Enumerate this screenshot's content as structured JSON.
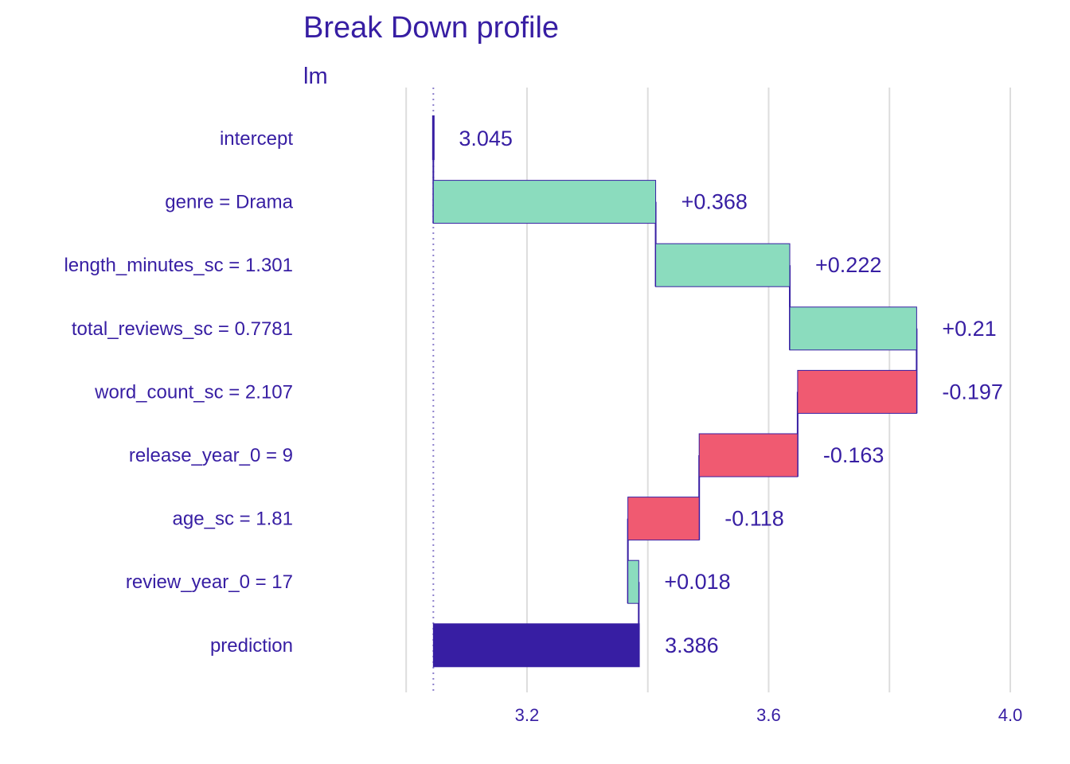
{
  "chart_data": {
    "type": "bar",
    "title": "Break Down profile",
    "subtitle": "lm",
    "categories": [
      "intercept",
      "genre = Drama",
      "length_minutes_sc = 1.301",
      "total_reviews_sc = 0.7781",
      "word_count_sc = 2.107",
      "release_year_0 = 9",
      "age_sc = 1.81",
      "review_year_0 = 17",
      "prediction"
    ],
    "contributions": [
      3.045,
      0.368,
      0.222,
      0.21,
      -0.197,
      -0.163,
      -0.118,
      0.018,
      3.386
    ],
    "value_labels": [
      "3.045",
      "+0.368",
      "+0.222",
      "+0.21",
      "-0.197",
      "-0.163",
      "-0.118",
      "+0.018",
      "3.386"
    ],
    "baseline": 3.045,
    "prediction": 3.386,
    "xlim": [
      2.98,
      4.0
    ],
    "x_ticks": [
      3.2,
      3.6,
      4.0
    ],
    "x_tick_labels": [
      "3.2",
      "3.6",
      "4.0"
    ],
    "x_gridlines": [
      3.0,
      3.2,
      3.4,
      3.6,
      3.8,
      4.0
    ],
    "grid": true,
    "xlabel": "",
    "ylabel": "",
    "colors": {
      "positive": "#8bdcbe",
      "negative": "#f05a71",
      "prediction": "#371ea3",
      "text": "#371ea3",
      "grid": "#dddddd",
      "baseline_line": "#8c7fcc"
    }
  }
}
